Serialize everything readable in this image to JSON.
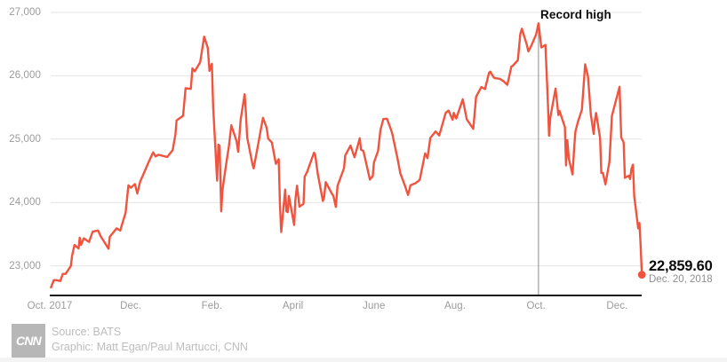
{
  "colors": {
    "line": "#F0543F",
    "grid": "#e4e4e4",
    "axis": "#1a1a1a",
    "annotation_line": "#8c8c8c",
    "tick_text": "#9b9b9b",
    "dark_text": "#0c0c0c",
    "muted_text": "#bdbdbd",
    "logo_bg": "#b7b7b7"
  },
  "chart_data": {
    "type": "line",
    "title": "",
    "xlabel": "",
    "ylabel": "",
    "x_unit": "months since Oct 1, 2017",
    "ylim": [
      22500,
      27200
    ],
    "grid": "horizontal-only",
    "y_ticks": [
      {
        "v": 27000,
        "label": "27,000"
      },
      {
        "v": 26000,
        "label": "26,000"
      },
      {
        "v": 25000,
        "label": "25,000"
      },
      {
        "v": 24000,
        "label": "24,000"
      },
      {
        "v": 23000,
        "label": "23,000"
      }
    ],
    "x_ticks": [
      {
        "t": 0,
        "label": "Oct. 2017"
      },
      {
        "t": 2,
        "label": "Dec."
      },
      {
        "t": 4,
        "label": "Feb."
      },
      {
        "t": 6,
        "label": "April"
      },
      {
        "t": 8,
        "label": "June"
      },
      {
        "t": 10,
        "label": "Aug."
      },
      {
        "t": 12,
        "label": "Oct."
      },
      {
        "t": 14,
        "label": "Dec."
      }
    ],
    "annotation": {
      "label": "Record high",
      "t": 12.06,
      "value": 26828
    },
    "end_label": {
      "value": "22,859.60",
      "date": "Dec. 20, 2018"
    },
    "points": [
      [
        0.03,
        22660
      ],
      [
        0.1,
        22775
      ],
      [
        0.16,
        22774
      ],
      [
        0.26,
        22761
      ],
      [
        0.32,
        22873
      ],
      [
        0.39,
        22872
      ],
      [
        0.52,
        22997
      ],
      [
        0.55,
        23158
      ],
      [
        0.61,
        23329
      ],
      [
        0.71,
        23274
      ],
      [
        0.74,
        23442
      ],
      [
        0.77,
        23329
      ],
      [
        0.84,
        23434
      ],
      [
        0.97,
        23377
      ],
      [
        1.0,
        23435
      ],
      [
        1.06,
        23539
      ],
      [
        1.19,
        23557
      ],
      [
        1.26,
        23462
      ],
      [
        1.45,
        23271
      ],
      [
        1.48,
        23458
      ],
      [
        1.65,
        23591
      ],
      [
        1.74,
        23558
      ],
      [
        1.87,
        23837
      ],
      [
        1.94,
        24272
      ],
      [
        2.0,
        24232
      ],
      [
        2.1,
        24290
      ],
      [
        2.16,
        24141
      ],
      [
        2.23,
        24329
      ],
      [
        2.35,
        24505
      ],
      [
        2.45,
        24652
      ],
      [
        2.55,
        24792
      ],
      [
        2.61,
        24727
      ],
      [
        2.68,
        24754
      ],
      [
        2.9,
        24719
      ],
      [
        3.03,
        24824
      ],
      [
        3.1,
        25075
      ],
      [
        3.13,
        25296
      ],
      [
        3.29,
        25369
      ],
      [
        3.35,
        25803
      ],
      [
        3.48,
        25793
      ],
      [
        3.52,
        26116
      ],
      [
        3.58,
        26072
      ],
      [
        3.71,
        26211
      ],
      [
        3.81,
        26617
      ],
      [
        3.9,
        26439
      ],
      [
        3.94,
        26077
      ],
      [
        3.97,
        26149
      ],
      [
        4.0,
        26187
      ],
      [
        4.03,
        25521
      ],
      [
        4.13,
        24346
      ],
      [
        4.16,
        24913
      ],
      [
        4.19,
        24893
      ],
      [
        4.23,
        23860
      ],
      [
        4.26,
        24191
      ],
      [
        4.35,
        24601
      ],
      [
        4.42,
        24893
      ],
      [
        4.48,
        25219
      ],
      [
        4.61,
        24965
      ],
      [
        4.65,
        24798
      ],
      [
        4.71,
        25310
      ],
      [
        4.81,
        25709
      ],
      [
        4.84,
        25410
      ],
      [
        4.87,
        25029
      ],
      [
        5.0,
        24609
      ],
      [
        5.03,
        24538
      ],
      [
        5.13,
        24875
      ],
      [
        5.26,
        25336
      ],
      [
        5.35,
        25179
      ],
      [
        5.39,
        25007
      ],
      [
        5.48,
        24947
      ],
      [
        5.58,
        24611
      ],
      [
        5.65,
        24682
      ],
      [
        5.68,
        23958
      ],
      [
        5.71,
        23533
      ],
      [
        5.81,
        24203
      ],
      [
        5.84,
        23858
      ],
      [
        5.87,
        23848
      ],
      [
        5.9,
        24103
      ],
      [
        6.03,
        23644
      ],
      [
        6.06,
        24033
      ],
      [
        6.1,
        24265
      ],
      [
        6.16,
        23933
      ],
      [
        6.26,
        23979
      ],
      [
        6.29,
        24408
      ],
      [
        6.35,
        24483
      ],
      [
        6.52,
        24786
      ],
      [
        6.55,
        24748
      ],
      [
        6.61,
        24463
      ],
      [
        6.74,
        24024
      ],
      [
        6.77,
        24084
      ],
      [
        6.81,
        24322
      ],
      [
        6.94,
        24163
      ],
      [
        7.0,
        24099
      ],
      [
        7.06,
        23930
      ],
      [
        7.1,
        24263
      ],
      [
        7.26,
        24542
      ],
      [
        7.29,
        24740
      ],
      [
        7.42,
        24899
      ],
      [
        7.52,
        24714
      ],
      [
        7.65,
        25013
      ],
      [
        7.68,
        24834
      ],
      [
        7.74,
        24812
      ],
      [
        7.9,
        24361
      ],
      [
        7.97,
        24416
      ],
      [
        8.0,
        24635
      ],
      [
        8.1,
        24814
      ],
      [
        8.16,
        25146
      ],
      [
        8.23,
        25317
      ],
      [
        8.32,
        25322
      ],
      [
        8.39,
        25201
      ],
      [
        8.45,
        25090
      ],
      [
        8.58,
        24700
      ],
      [
        8.65,
        24462
      ],
      [
        8.77,
        24253
      ],
      [
        8.84,
        24118
      ],
      [
        8.9,
        24271
      ],
      [
        9.03,
        24307
      ],
      [
        9.13,
        24357
      ],
      [
        9.16,
        24456
      ],
      [
        9.26,
        24776
      ],
      [
        9.32,
        24700
      ],
      [
        9.39,
        25019
      ],
      [
        9.52,
        25120
      ],
      [
        9.61,
        25058
      ],
      [
        9.77,
        25414
      ],
      [
        9.84,
        25451
      ],
      [
        9.94,
        25306
      ],
      [
        9.97,
        25415
      ],
      [
        10.03,
        25327
      ],
      [
        10.19,
        25629
      ],
      [
        10.29,
        25313
      ],
      [
        10.45,
        25162
      ],
      [
        10.52,
        25669
      ],
      [
        10.65,
        25822
      ],
      [
        10.74,
        25790
      ],
      [
        10.84,
        26050
      ],
      [
        10.87,
        26064
      ],
      [
        10.94,
        25987
      ],
      [
        10.97,
        25965
      ],
      [
        11.1,
        25952
      ],
      [
        11.19,
        25917
      ],
      [
        11.29,
        25857
      ],
      [
        11.39,
        26146
      ],
      [
        11.42,
        26155
      ],
      [
        11.55,
        26247
      ],
      [
        11.61,
        26657
      ],
      [
        11.65,
        26744
      ],
      [
        11.77,
        26492
      ],
      [
        11.81,
        26385
      ],
      [
        11.87,
        26458
      ],
      [
        12.0,
        26651
      ],
      [
        12.06,
        26828
      ],
      [
        12.13,
        26447
      ],
      [
        12.23,
        26487
      ],
      [
        12.29,
        25599
      ],
      [
        12.32,
        25053
      ],
      [
        12.35,
        25340
      ],
      [
        12.48,
        25798
      ],
      [
        12.55,
        25379
      ],
      [
        12.58,
        25444
      ],
      [
        12.71,
        25191
      ],
      [
        12.74,
        24584
      ],
      [
        12.77,
        24985
      ],
      [
        12.81,
        24688
      ],
      [
        12.9,
        24443
      ],
      [
        12.94,
        24875
      ],
      [
        12.97,
        25116
      ],
      [
        13.03,
        25271
      ],
      [
        13.13,
        25462
      ],
      [
        13.21,
        26180
      ],
      [
        13.28,
        25989
      ],
      [
        13.35,
        25387
      ],
      [
        13.42,
        25081
      ],
      [
        13.45,
        25289
      ],
      [
        13.48,
        25413
      ],
      [
        13.58,
        25017
      ],
      [
        13.61,
        24466
      ],
      [
        13.65,
        24465
      ],
      [
        13.71,
        24286
      ],
      [
        13.81,
        24640
      ],
      [
        13.87,
        25366
      ],
      [
        13.94,
        25538
      ],
      [
        14.06,
        25826
      ],
      [
        14.1,
        25027
      ],
      [
        14.16,
        24948
      ],
      [
        14.19,
        24389
      ],
      [
        14.29,
        24423
      ],
      [
        14.32,
        24370
      ],
      [
        14.35,
        24527
      ],
      [
        14.39,
        24597
      ],
      [
        14.42,
        24101
      ],
      [
        14.52,
        23593
      ],
      [
        14.55,
        23676
      ],
      [
        14.58,
        23324
      ],
      [
        14.61,
        22859.6
      ]
    ]
  },
  "footer": {
    "logo": "CNN",
    "source": "Source: BATS",
    "credit": "Graphic: Matt Egan/Paul Martucci, CNN"
  }
}
